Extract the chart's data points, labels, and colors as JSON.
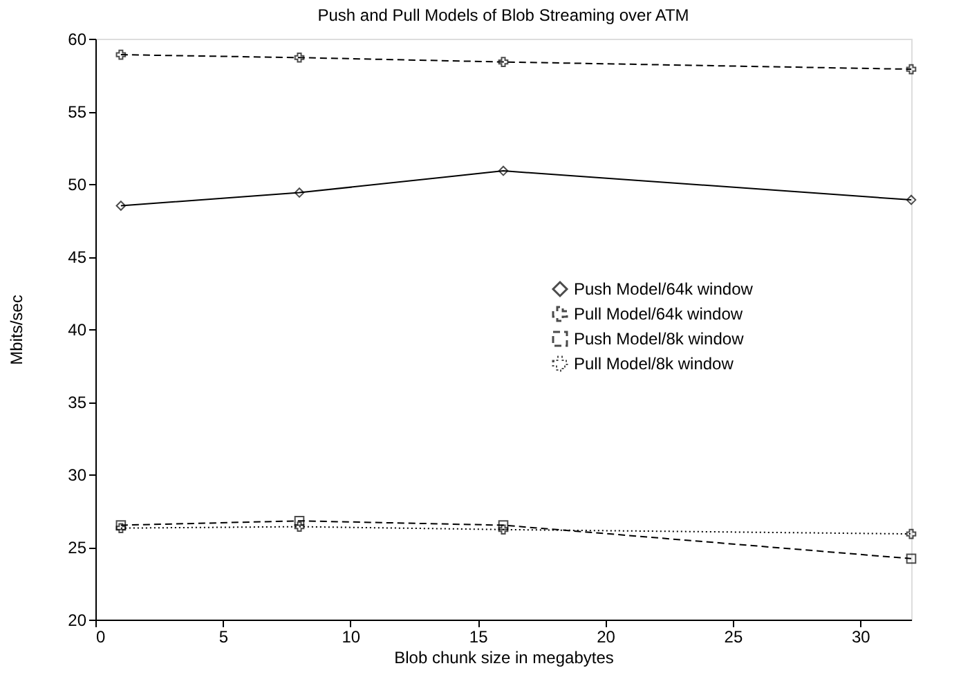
{
  "chart_data": {
    "type": "line",
    "title": "Push and Pull Models of Blob Streaming over ATM",
    "xlabel": "Blob chunk size in megabytes",
    "ylabel": "Mbits/sec",
    "x": [
      1,
      8,
      16,
      32
    ],
    "xlim": [
      0,
      32
    ],
    "xticks": [
      0,
      5,
      10,
      15,
      20,
      25,
      30
    ],
    "ylim": [
      20,
      60
    ],
    "yticks": [
      20,
      25,
      30,
      35,
      40,
      45,
      50,
      55,
      60
    ],
    "grid": false,
    "legend": "right",
    "series": [
      {
        "name": "Push Model/64k window",
        "color": "#000000",
        "marker": "diamond",
        "line_style": "solid",
        "values": [
          48.5,
          49.4,
          50.9,
          48.9
        ]
      },
      {
        "name": "Pull Model/64k window",
        "color": "#000000",
        "marker": "cross",
        "line_style": "dashed",
        "values": [
          58.9,
          58.7,
          58.4,
          57.9
        ]
      },
      {
        "name": "Push Model/8k window",
        "color": "#000000",
        "marker": "square",
        "line_style": "dashed",
        "values": [
          26.5,
          26.8,
          26.5,
          24.2
        ]
      },
      {
        "name": "Pull Model/8k window",
        "color": "#000000",
        "marker": "cross",
        "line_style": "dotted",
        "values": [
          26.3,
          26.4,
          26.2,
          25.9
        ]
      }
    ]
  }
}
